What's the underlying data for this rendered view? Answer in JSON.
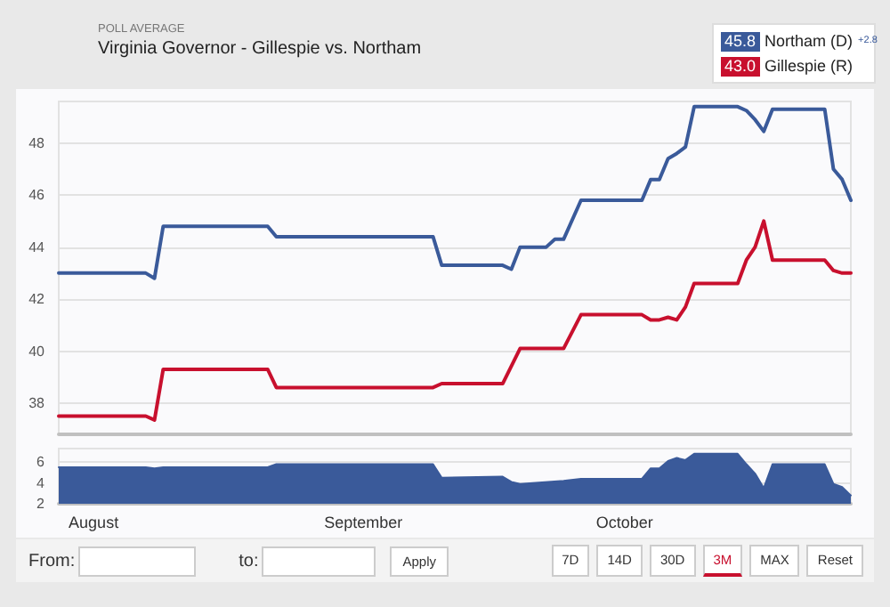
{
  "chart_data": [
    {
      "type": "line",
      "subtitle": "POLL AVERAGE",
      "title": "Virginia Governor - Gillespie vs. Northam",
      "legend": "top right",
      "grid": "y",
      "marker": "none",
      "line_style": "solid",
      "tick_labels": "y",
      "annotations": [
        "45.8",
        "43.0",
        "+2.8"
      ],
      "xlim": [
        "--07-28",
        "--10-27"
      ],
      "ylim": [
        36.8,
        49.6
      ],
      "yticks": [
        38,
        40,
        42,
        44,
        46,
        48
      ],
      "series": [
        {
          "name": "Northam (D)",
          "color": "#3a5a9a",
          "x": [
            "--07-28",
            "--08-07",
            "--08-08",
            "--08-09",
            "--08-21",
            "--08-22",
            "--09-09",
            "--09-10",
            "--09-17",
            "--09-18",
            "--09-19",
            "--09-22",
            "--09-23",
            "--09-24",
            "--09-26",
            "--10-03",
            "--10-04",
            "--10-05",
            "--10-06",
            "--10-07",
            "--10-08",
            "--10-09",
            "--10-14",
            "--10-15",
            "--10-16",
            "--10-17",
            "--10-18",
            "--10-24",
            "--10-25",
            "--10-26",
            "--10-27"
          ],
          "values": [
            43.0,
            43.0,
            42.8,
            44.8,
            44.8,
            44.4,
            44.4,
            43.3,
            43.3,
            43.15,
            44.0,
            44.0,
            44.3,
            44.3,
            45.8,
            45.8,
            46.6,
            46.6,
            47.4,
            47.6,
            47.85,
            49.4,
            49.4,
            49.25,
            48.9,
            48.45,
            49.3,
            49.3,
            47.0,
            46.6,
            45.8
          ]
        },
        {
          "name": "Gillespie (R)",
          "color": "#c8102e",
          "x": [
            "--07-28",
            "--08-07",
            "--08-08",
            "--08-09",
            "--08-21",
            "--08-22",
            "--09-09",
            "--09-10",
            "--09-17",
            "--09-19",
            "--09-24",
            "--09-26",
            "--10-03",
            "--10-04",
            "--10-05",
            "--10-06",
            "--10-07",
            "--10-08",
            "--10-09",
            "--10-14",
            "--10-15",
            "--10-16",
            "--10-17",
            "--10-18",
            "--10-24",
            "--10-25",
            "--10-26",
            "--10-27"
          ],
          "values": [
            37.5,
            37.5,
            37.35,
            39.3,
            39.3,
            38.6,
            38.6,
            38.75,
            38.75,
            40.1,
            40.1,
            41.4,
            41.4,
            41.2,
            41.2,
            41.3,
            41.2,
            41.7,
            42.6,
            42.6,
            43.5,
            44.0,
            45.0,
            43.5,
            43.5,
            43.1,
            43.0,
            43.0
          ]
        }
      ]
    },
    {
      "type": "area",
      "grid": "y",
      "marker": "none",
      "xlim": [
        "--07-28",
        "--10-27"
      ],
      "xticks": [
        {
          "value": "--08-01",
          "label": "August"
        },
        {
          "value": "--09-01",
          "label": "September"
        },
        {
          "value": "--10-01",
          "label": "October"
        }
      ],
      "ylim": [
        2,
        7.3
      ],
      "yticks": [
        2,
        4,
        6
      ],
      "annotations": [
        "From:",
        "to:",
        "Apply",
        "7D",
        "14D",
        "30D",
        "3M",
        "MAX",
        "Reset"
      ],
      "series": [
        {
          "color": "#3a5a9a",
          "x": [
            "--07-28",
            "--08-07",
            "--08-08",
            "--08-09",
            "--08-21",
            "--08-22",
            "--09-09",
            "--09-10",
            "--09-17",
            "--09-18",
            "--09-19",
            "--09-24",
            "--09-26",
            "--10-03",
            "--10-04",
            "--10-05",
            "--10-06",
            "--10-07",
            "--10-08",
            "--10-09",
            "--10-14",
            "--10-15",
            "--10-16",
            "--10-17",
            "--10-18",
            "--10-24",
            "--10-25",
            "--10-26",
            "--10-27"
          ],
          "values": [
            5.5,
            5.5,
            5.4,
            5.5,
            5.5,
            5.8,
            5.8,
            4.5,
            4.6,
            4.1,
            3.9,
            4.2,
            4.4,
            4.4,
            5.4,
            5.4,
            6.1,
            6.4,
            6.2,
            6.8,
            6.8,
            5.8,
            4.9,
            3.5,
            5.8,
            5.8,
            3.9,
            3.6,
            2.8
          ]
        }
      ]
    }
  ]
}
